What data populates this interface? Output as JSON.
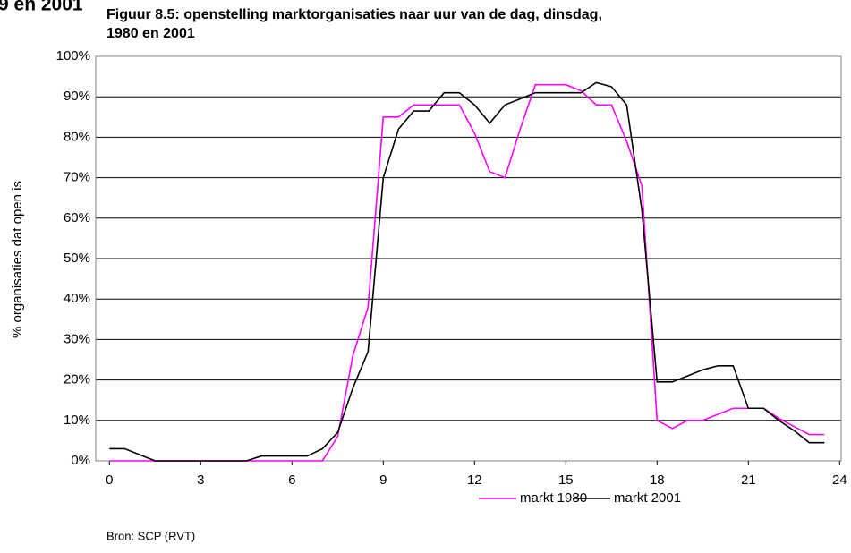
{
  "chart_data": {
    "type": "line",
    "heading_fragment": "9 en 2001",
    "title": "Figuur 8.5: openstelling marktorganisaties naar uur van de dag, dinsdag,",
    "subtitle": "1980 en 2001",
    "ylabel": "% organisaties dat open is",
    "source": "Bron: SCP (RVT)",
    "x": [
      0,
      0.5,
      1,
      1.5,
      2,
      2.5,
      3,
      3.5,
      4,
      4.5,
      5,
      5.5,
      6,
      6.5,
      7,
      7.5,
      8,
      8.5,
      9,
      9.5,
      10,
      10.5,
      11,
      11.5,
      12,
      12.5,
      13,
      13.5,
      14,
      14.5,
      15,
      15.5,
      16,
      16.5,
      17,
      17.5,
      18,
      18.5,
      19,
      19.5,
      20,
      20.5,
      21,
      21.5,
      22,
      22.5,
      23,
      23.5
    ],
    "series": [
      {
        "name": "markt 1980",
        "color": "#ff00ff",
        "values": [
          0,
          0,
          0,
          0,
          0,
          0,
          0,
          0,
          0,
          0,
          0,
          0,
          0,
          0,
          0,
          6,
          26,
          38,
          85,
          85,
          88,
          88,
          88,
          88,
          81,
          71.5,
          70,
          82,
          93,
          93,
          93,
          91.5,
          88,
          88,
          79,
          68,
          10,
          8,
          10,
          10,
          11.5,
          13,
          13,
          13,
          10.5,
          8.5,
          6.5,
          6.5
        ]
      },
      {
        "name": "markt 2001",
        "color": "#000000",
        "values": [
          3,
          3,
          1.5,
          0,
          0,
          0,
          0,
          0,
          0,
          0,
          1.2,
          1.2,
          1.2,
          1.2,
          3,
          7,
          18,
          27,
          70,
          82,
          86.5,
          86.5,
          91,
          91,
          88,
          83.5,
          88,
          89.5,
          91,
          91,
          91,
          91,
          93.5,
          92.5,
          88,
          62,
          19.5,
          19.5,
          21,
          22.5,
          23.5,
          23.5,
          13,
          13,
          10,
          7.5,
          4.5,
          4.5
        ]
      }
    ],
    "xlim": [
      -0.45,
      24.05
    ],
    "xticks": [
      0,
      3,
      6,
      9,
      12,
      15,
      18,
      21,
      24
    ],
    "ylim": [
      0,
      100
    ],
    "yticks": [
      {
        "value": 0,
        "label": "0%"
      },
      {
        "value": 10,
        "label": "10%"
      },
      {
        "value": 20,
        "label": "20%"
      },
      {
        "value": 30,
        "label": "30%"
      },
      {
        "value": 40,
        "label": "40%"
      },
      {
        "value": 50,
        "label": "50%"
      },
      {
        "value": 60,
        "label": "60%"
      },
      {
        "value": 70,
        "label": "70%"
      },
      {
        "value": 80,
        "label": "80%"
      },
      {
        "value": 90,
        "label": "90%"
      },
      {
        "value": 100,
        "label": "100%"
      }
    ],
    "grid": true,
    "legend": "bottom"
  }
}
